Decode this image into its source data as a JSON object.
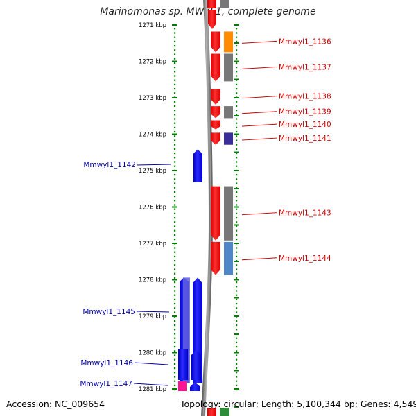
{
  "title": "Marinomonas sp. MWYL1, complete genome",
  "footer": {
    "accession": "Accession: NC_009654",
    "topology": "Topology: circular; Length: 5,100,344 bp; Genes: 4,549"
  },
  "scale": {
    "unit": "kbp",
    "ticks": [
      "1271 kbp",
      "1272 kbp",
      "1273 kbp",
      "1274 kbp",
      "1275 kbp",
      "1276 kbp",
      "1277 kbp",
      "1278 kbp",
      "1279 kbp",
      "1280 kbp",
      "1281 kbp"
    ]
  },
  "colors": {
    "forward_gene": "#ff0000",
    "reverse_gene": "#0000ff",
    "backbone": "#888888",
    "scale_dots": "#008000",
    "label_forward": "#cc0000",
    "label_reverse": "#0000aa"
  },
  "genes_forward": [
    {
      "label": "Mmwyl1_1136",
      "start_kbp": 1271.18,
      "end_kbp": 1271.75,
      "function_color": "#ff8c00"
    },
    {
      "label": "Mmwyl1_1137",
      "start_kbp": 1271.79,
      "end_kbp": 1272.55,
      "function_color": "#777777"
    },
    {
      "label": "Mmwyl1_1138",
      "start_kbp": 1272.76,
      "end_kbp": 1273.19,
      "function_color": null
    },
    {
      "label": "Mmwyl1_1139",
      "start_kbp": 1273.23,
      "end_kbp": 1273.56,
      "function_color": "#777777"
    },
    {
      "label": "Mmwyl1_1140",
      "start_kbp": 1273.62,
      "end_kbp": 1273.87,
      "function_color": null
    },
    {
      "label": "Mmwyl1_1141",
      "start_kbp": 1273.96,
      "end_kbp": 1274.29,
      "function_color": "#3a2d9a"
    },
    {
      "label": "Mmwyl1_1143",
      "start_kbp": 1275.43,
      "end_kbp": 1276.92,
      "function_color": "#777777"
    },
    {
      "label": "Mmwyl1_1144",
      "start_kbp": 1276.96,
      "end_kbp": 1277.87,
      "function_color": "#4f86c6"
    }
  ],
  "genes_reverse": [
    {
      "label": "Mmwyl1_1142",
      "start_kbp": 1274.42,
      "end_kbp": 1275.32,
      "function_color": null
    },
    {
      "label": "Mmwyl1_1145",
      "start_kbp": 1277.94,
      "end_kbp": 1280.83,
      "function_color": "#6060e0"
    },
    {
      "label": "Mmwyl1_1146",
      "start_kbp": 1280.9,
      "end_kbp": 1281.75,
      "function_color": null
    },
    {
      "label": "Mmwyl1_1147",
      "start_kbp": 1281.76,
      "end_kbp": 1281.05,
      "function_color": "#ff1493"
    }
  ]
}
